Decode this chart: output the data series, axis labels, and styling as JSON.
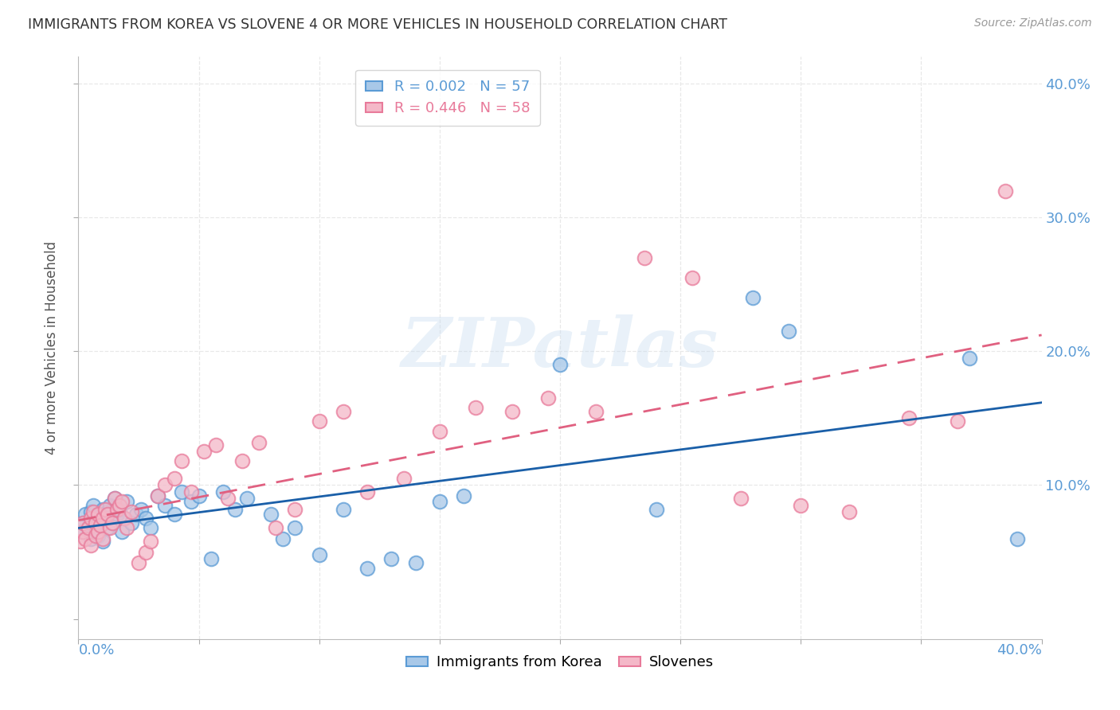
{
  "title": "IMMIGRANTS FROM KOREA VS SLOVENE 4 OR MORE VEHICLES IN HOUSEHOLD CORRELATION CHART",
  "source": "Source: ZipAtlas.com",
  "ylabel": "4 or more Vehicles in Household",
  "xlim": [
    0.0,
    0.4
  ],
  "ylim": [
    -0.015,
    0.42
  ],
  "r_korea": 0.002,
  "n_korea": 57,
  "r_slovene": 0.446,
  "n_slovene": 58,
  "korea_color": "#a8c8e8",
  "korea_edge": "#5b9bd5",
  "slovene_color": "#f4b8c8",
  "slovene_edge": "#e87a9a",
  "korea_line_color": "#1a5fa8",
  "slovene_line_color": "#e06080",
  "watermark_text": "ZIPatlas",
  "grid_color": "#e8e8e8",
  "y_ticks": [
    0.0,
    0.1,
    0.2,
    0.3,
    0.4
  ],
  "y_tick_labels": [
    "",
    "10.0%",
    "20.0%",
    "30.0%",
    "40.0%"
  ],
  "x_ticks": [
    0.0,
    0.05,
    0.1,
    0.15,
    0.2,
    0.25,
    0.3,
    0.35,
    0.4
  ],
  "korea_x": [
    0.001,
    0.002,
    0.003,
    0.004,
    0.005,
    0.005,
    0.006,
    0.006,
    0.007,
    0.007,
    0.008,
    0.008,
    0.009,
    0.01,
    0.01,
    0.011,
    0.012,
    0.012,
    0.013,
    0.014,
    0.015,
    0.016,
    0.017,
    0.018,
    0.019,
    0.02,
    0.022,
    0.024,
    0.026,
    0.028,
    0.03,
    0.033,
    0.036,
    0.04,
    0.043,
    0.047,
    0.05,
    0.055,
    0.06,
    0.065,
    0.07,
    0.08,
    0.085,
    0.09,
    0.1,
    0.11,
    0.12,
    0.13,
    0.14,
    0.15,
    0.16,
    0.2,
    0.24,
    0.28,
    0.295,
    0.37,
    0.39
  ],
  "korea_y": [
    0.065,
    0.072,
    0.078,
    0.068,
    0.08,
    0.06,
    0.085,
    0.07,
    0.075,
    0.065,
    0.072,
    0.062,
    0.078,
    0.082,
    0.058,
    0.075,
    0.08,
    0.068,
    0.085,
    0.072,
    0.09,
    0.078,
    0.082,
    0.065,
    0.075,
    0.088,
    0.072,
    0.078,
    0.082,
    0.075,
    0.068,
    0.092,
    0.085,
    0.078,
    0.095,
    0.088,
    0.092,
    0.045,
    0.095,
    0.082,
    0.09,
    0.078,
    0.06,
    0.068,
    0.048,
    0.082,
    0.038,
    0.045,
    0.042,
    0.088,
    0.092,
    0.19,
    0.082,
    0.24,
    0.215,
    0.195,
    0.06
  ],
  "slovene_x": [
    0.001,
    0.002,
    0.002,
    0.003,
    0.004,
    0.005,
    0.005,
    0.006,
    0.007,
    0.007,
    0.008,
    0.008,
    0.009,
    0.01,
    0.01,
    0.011,
    0.012,
    0.013,
    0.014,
    0.015,
    0.016,
    0.017,
    0.018,
    0.019,
    0.02,
    0.022,
    0.025,
    0.028,
    0.03,
    0.033,
    0.036,
    0.04,
    0.043,
    0.047,
    0.052,
    0.057,
    0.062,
    0.068,
    0.075,
    0.082,
    0.09,
    0.1,
    0.11,
    0.12,
    0.135,
    0.15,
    0.165,
    0.18,
    0.195,
    0.215,
    0.235,
    0.255,
    0.275,
    0.3,
    0.32,
    0.345,
    0.365,
    0.385
  ],
  "slovene_y": [
    0.058,
    0.065,
    0.072,
    0.06,
    0.068,
    0.075,
    0.055,
    0.08,
    0.072,
    0.062,
    0.078,
    0.065,
    0.07,
    0.075,
    0.06,
    0.082,
    0.078,
    0.068,
    0.072,
    0.09,
    0.082,
    0.085,
    0.088,
    0.075,
    0.068,
    0.08,
    0.042,
    0.05,
    0.058,
    0.092,
    0.1,
    0.105,
    0.118,
    0.095,
    0.125,
    0.13,
    0.09,
    0.118,
    0.132,
    0.068,
    0.082,
    0.148,
    0.155,
    0.095,
    0.105,
    0.14,
    0.158,
    0.155,
    0.165,
    0.155,
    0.27,
    0.255,
    0.09,
    0.085,
    0.08,
    0.15,
    0.148,
    0.32
  ]
}
